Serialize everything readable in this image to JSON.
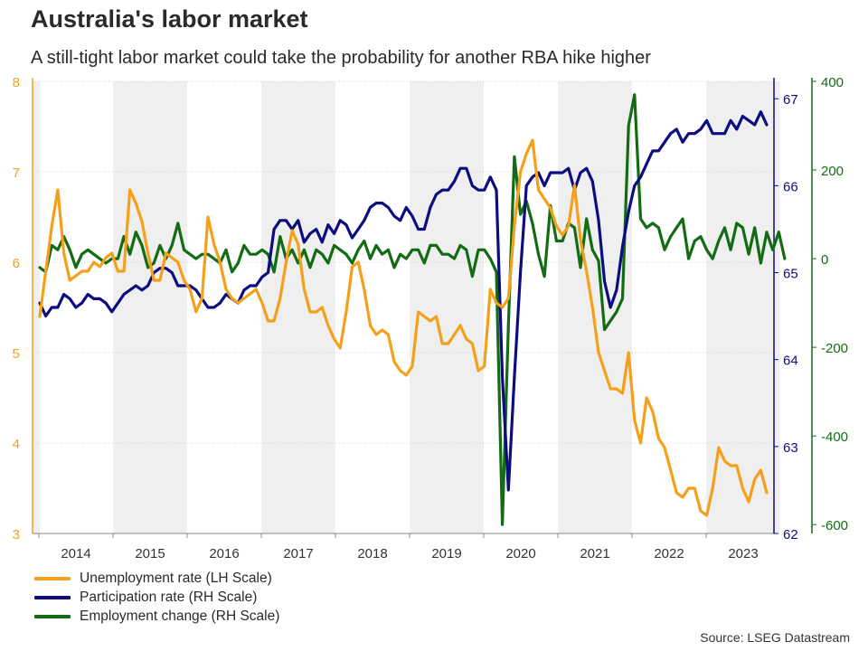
{
  "title": "Australia's labor market",
  "subtitle": "A still-tight labor market could take the probability for another RBA hike higher",
  "source": "Source: LSEG Datastream",
  "colors": {
    "unemployment": "#f5a01a",
    "participation": "#0d0d80",
    "employment": "#136b13",
    "shade": "#efefef",
    "grid": "#d6d6d6"
  },
  "chart_data": {
    "type": "line",
    "x_label_years": [
      "2014",
      "2015",
      "2016",
      "2017",
      "2018",
      "2019",
      "2020",
      "2021",
      "2022",
      "2023"
    ],
    "left_axis": {
      "label": "LH Scale",
      "ticks": [
        "8",
        "7",
        "6",
        "5",
        "4",
        "3"
      ],
      "range": [
        3,
        8
      ]
    },
    "right_axis_participation": {
      "ticks": [
        "67",
        "66",
        "65",
        "64",
        "63",
        "62"
      ],
      "range": [
        62,
        67.2
      ]
    },
    "right_axis_employment": {
      "ticks": [
        "400",
        "200",
        "0",
        "-200",
        "-400",
        "-600"
      ],
      "range": [
        -620,
        400
      ]
    },
    "series": [
      {
        "name": "Unemployment rate (LH Scale)",
        "axis": "left",
        "values": [
          5.4,
          5.9,
          6.4,
          6.8,
          6.1,
          5.8,
          5.85,
          5.9,
          5.9,
          6.0,
          5.95,
          6.05,
          6.1,
          5.9,
          5.9,
          6.8,
          6.65,
          6.45,
          6.1,
          5.8,
          5.8,
          6.1,
          6.05,
          6.0,
          5.8,
          5.7,
          5.45,
          5.6,
          6.5,
          6.2,
          6.0,
          5.7,
          5.6,
          5.55,
          5.6,
          5.65,
          5.7,
          5.55,
          5.35,
          5.35,
          5.6,
          6.0,
          6.35,
          6.2,
          5.7,
          5.45,
          5.45,
          5.5,
          5.3,
          5.15,
          5.05,
          5.45,
          5.95,
          6.0,
          5.7,
          5.3,
          5.2,
          5.25,
          5.2,
          4.9,
          4.8,
          4.75,
          4.85,
          5.45,
          5.4,
          5.35,
          5.4,
          5.1,
          5.1,
          5.2,
          5.3,
          5.15,
          5.1,
          4.8,
          4.85,
          5.7,
          5.55,
          5.5,
          5.6,
          6.4,
          7.0,
          7.2,
          7.35,
          6.8,
          6.7,
          6.6,
          6.4,
          6.3,
          6.4,
          6.85,
          6.25,
          5.9,
          5.5,
          5.0,
          4.8,
          4.6,
          4.6,
          4.55,
          5.0,
          4.25,
          4.0,
          4.5,
          4.35,
          4.05,
          3.95,
          3.7,
          3.45,
          3.4,
          3.5,
          3.5,
          3.25,
          3.2,
          3.5,
          3.95,
          3.8,
          3.75,
          3.75,
          3.5,
          3.35,
          3.6,
          3.7,
          3.45
        ]
      },
      {
        "name": "Participation rate (RH Scale)",
        "axis": "right-participation",
        "values": [
          64.65,
          64.5,
          64.6,
          64.6,
          64.75,
          64.7,
          64.6,
          64.65,
          64.75,
          64.7,
          64.7,
          64.65,
          64.55,
          64.65,
          64.75,
          64.8,
          64.85,
          64.8,
          64.85,
          65.0,
          65.05,
          65.05,
          65.0,
          64.85,
          64.85,
          64.85,
          64.8,
          64.7,
          64.6,
          64.6,
          64.65,
          64.75,
          64.7,
          64.65,
          64.8,
          64.85,
          64.85,
          64.95,
          65.0,
          65.5,
          65.6,
          65.6,
          65.5,
          65.6,
          65.35,
          65.45,
          65.5,
          65.35,
          65.55,
          65.45,
          65.6,
          65.55,
          65.4,
          65.5,
          65.6,
          65.75,
          65.8,
          65.8,
          65.75,
          65.65,
          65.6,
          65.75,
          65.65,
          65.5,
          65.5,
          65.75,
          65.9,
          65.95,
          65.95,
          66.05,
          66.2,
          66.2,
          66.0,
          65.95,
          65.95,
          66.1,
          65.95,
          63.8,
          62.5,
          63.8,
          65.0,
          66.0,
          66.1,
          66.15,
          66.0,
          66.15,
          66.15,
          66.15,
          66.2,
          65.95,
          66.15,
          66.2,
          66.05,
          65.6,
          64.9,
          64.6,
          64.8,
          65.3,
          65.7,
          66.0,
          66.1,
          66.25,
          66.4,
          66.4,
          66.5,
          66.6,
          66.65,
          66.5,
          66.6,
          66.6,
          66.65,
          66.75,
          66.6,
          66.6,
          66.6,
          66.75,
          66.65,
          66.8,
          66.75,
          66.7,
          66.85,
          66.7
        ]
      },
      {
        "name": "Employment change (RH Scale)",
        "axis": "right-employment",
        "values": [
          -20,
          -30,
          30,
          20,
          50,
          20,
          -20,
          10,
          20,
          10,
          0,
          -10,
          0,
          0,
          50,
          10,
          60,
          30,
          -20,
          -10,
          30,
          0,
          30,
          80,
          20,
          10,
          0,
          10,
          10,
          0,
          -10,
          20,
          -30,
          -10,
          30,
          10,
          10,
          20,
          10,
          -30,
          50,
          0,
          20,
          -10,
          20,
          -20,
          20,
          10,
          -10,
          30,
          20,
          10,
          -10,
          20,
          40,
          0,
          30,
          10,
          20,
          -20,
          10,
          0,
          20,
          20,
          -10,
          30,
          30,
          10,
          10,
          0,
          30,
          20,
          -40,
          20,
          20,
          0,
          -30,
          -600,
          -150,
          230,
          100,
          130,
          80,
          10,
          -40,
          120,
          40,
          40,
          80,
          70,
          -20,
          90,
          20,
          -5,
          -160,
          -140,
          -120,
          -90,
          300,
          370,
          90,
          70,
          80,
          70,
          20,
          50,
          70,
          90,
          0,
          40,
          50,
          20,
          0,
          40,
          70,
          20,
          80,
          70,
          10,
          70,
          -10,
          60,
          20,
          60,
          0
        ]
      }
    ]
  }
}
